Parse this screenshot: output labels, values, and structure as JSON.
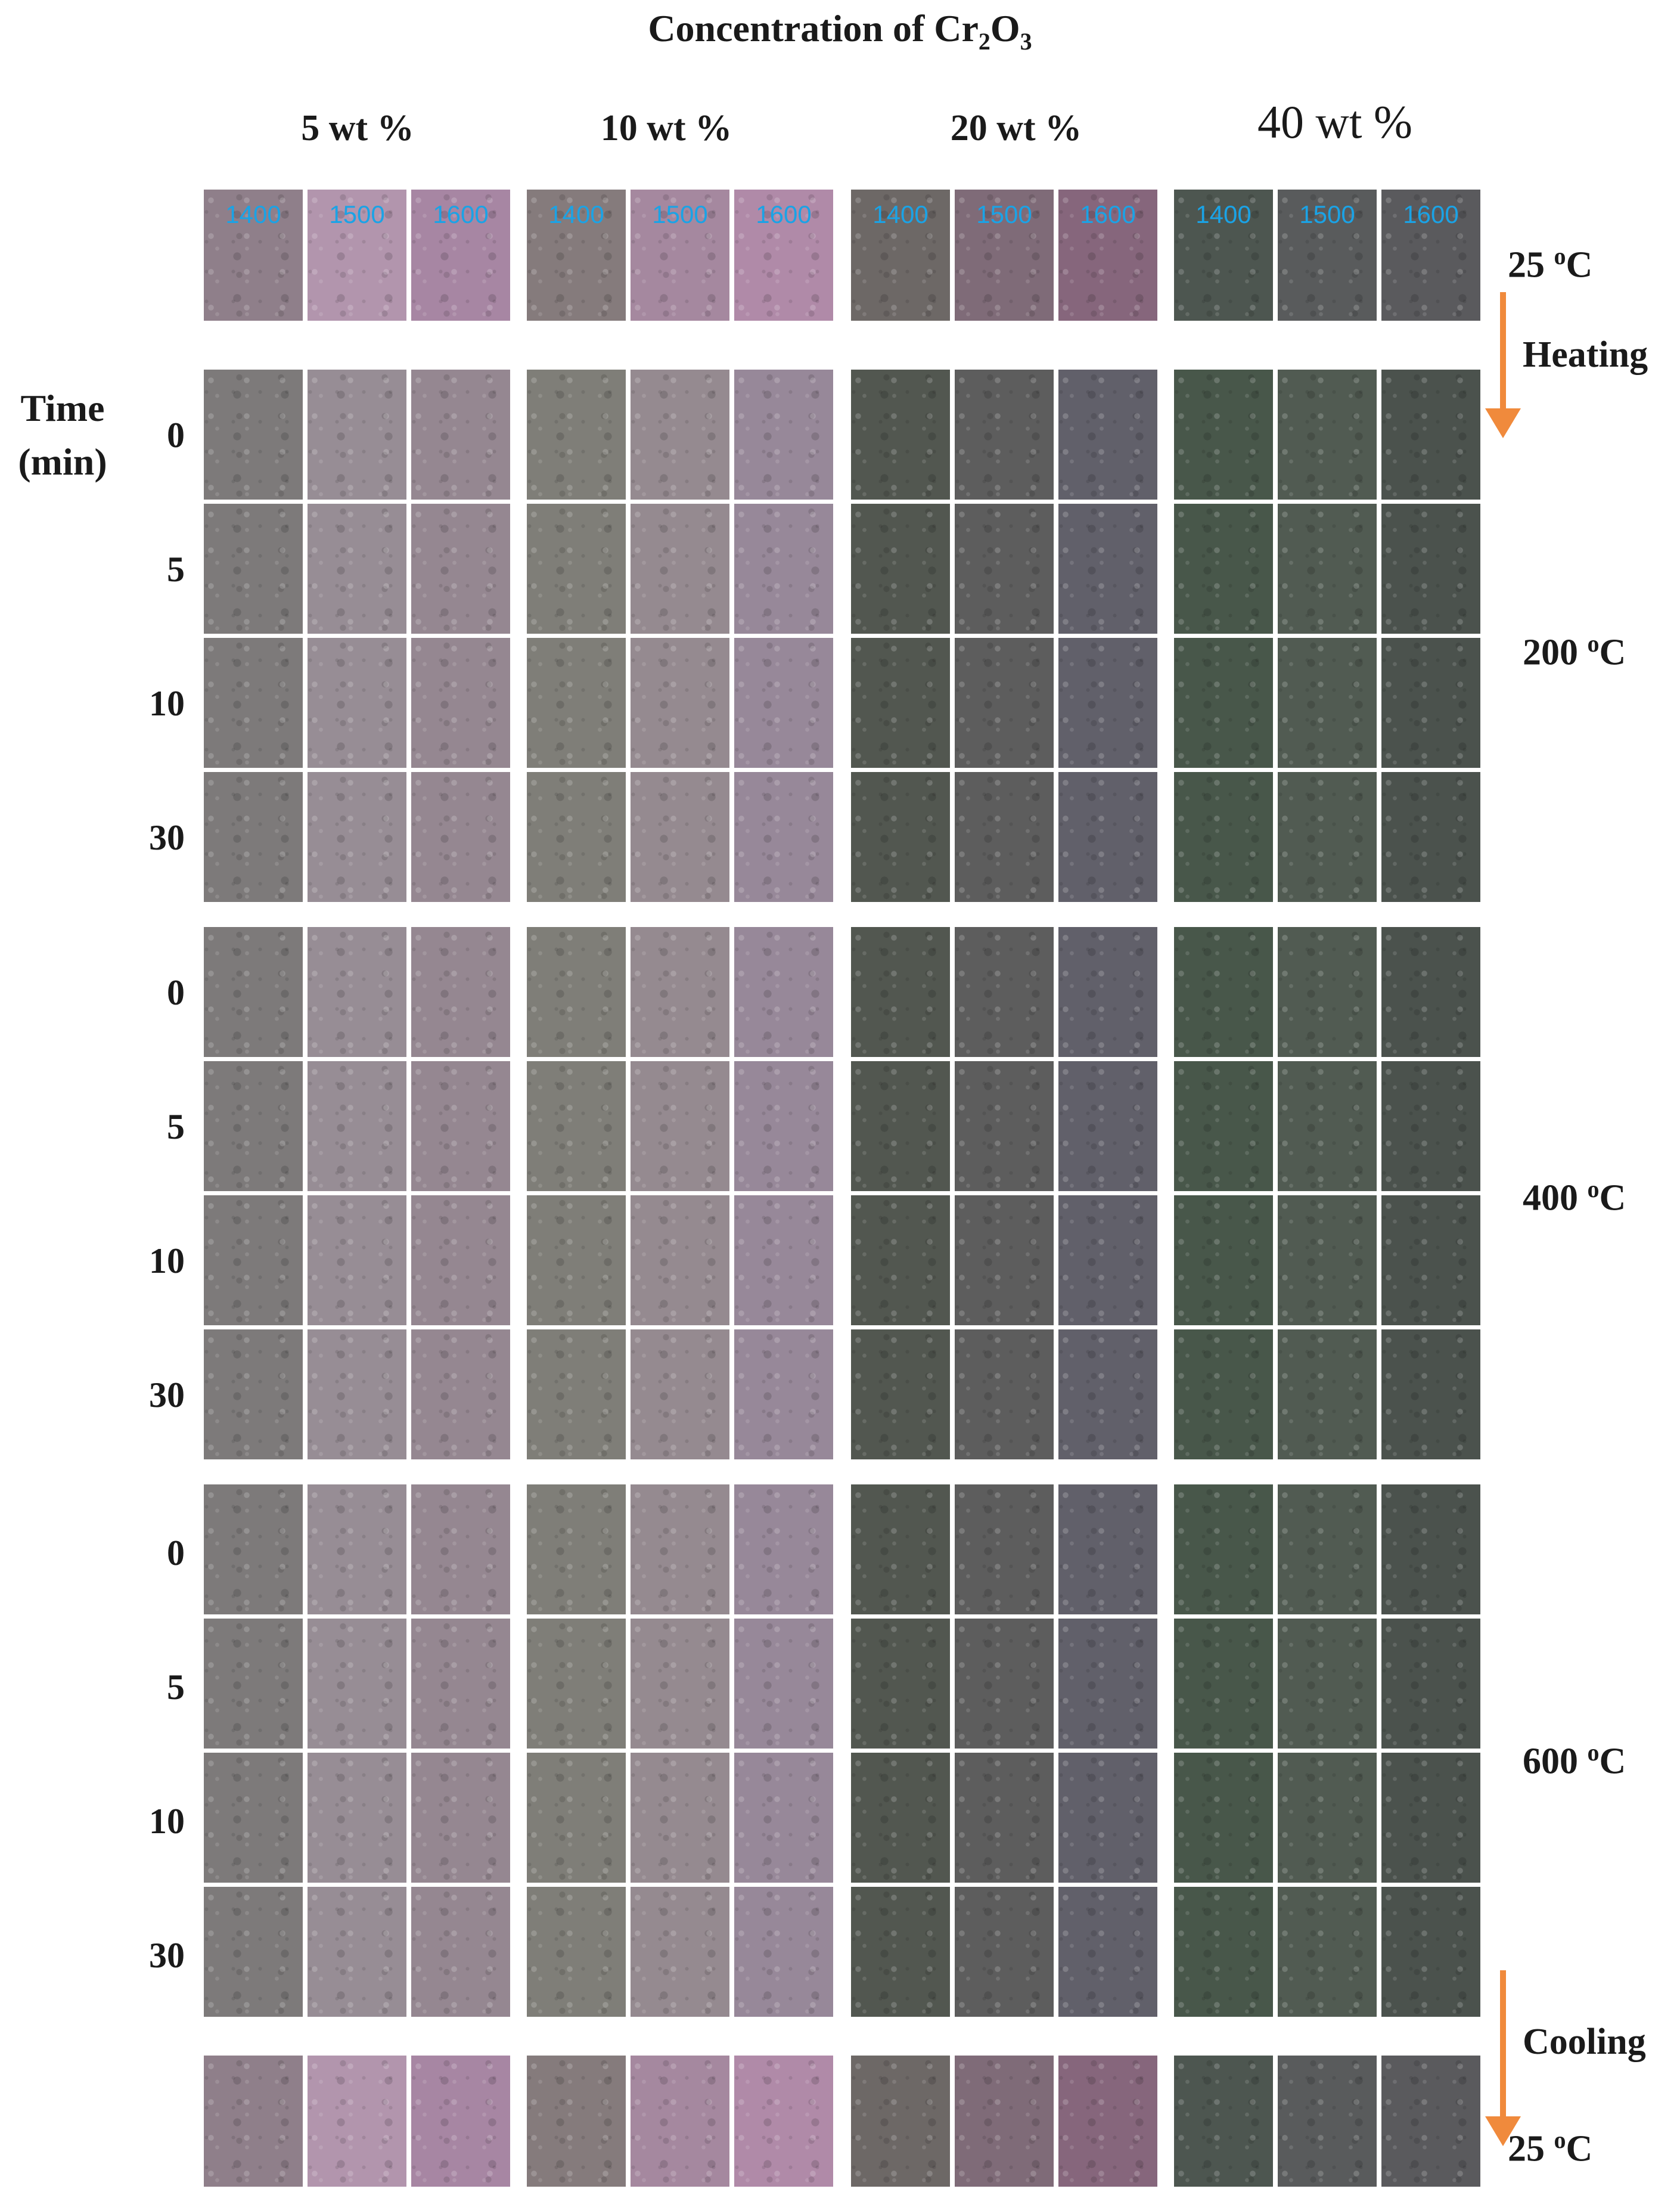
{
  "title_prefix": "Concentration of Cr",
  "title_sub1": "2",
  "title_mid": "O",
  "title_sub2": "3",
  "concentrations": [
    "5 wt %",
    "10 wt %",
    "20 wt %",
    "40 wt %"
  ],
  "sample_labels": [
    "1400",
    "1500",
    "1600"
  ],
  "axis_label_line1": "Time",
  "axis_label_line2": "(min)",
  "time_labels": [
    "0",
    "5",
    "10",
    "30"
  ],
  "temps": {
    "start": "25 ",
    "t200": "200 ",
    "t400": "400 ",
    "t600": "600 ",
    "end": "25 ",
    "degree": "o",
    "unit": "C"
  },
  "heating_label": "Heating",
  "cooling_label": "Cooling",
  "colors": {
    "arrow": "#f08a3c",
    "sample_label": "#1aa3e6"
  }
}
